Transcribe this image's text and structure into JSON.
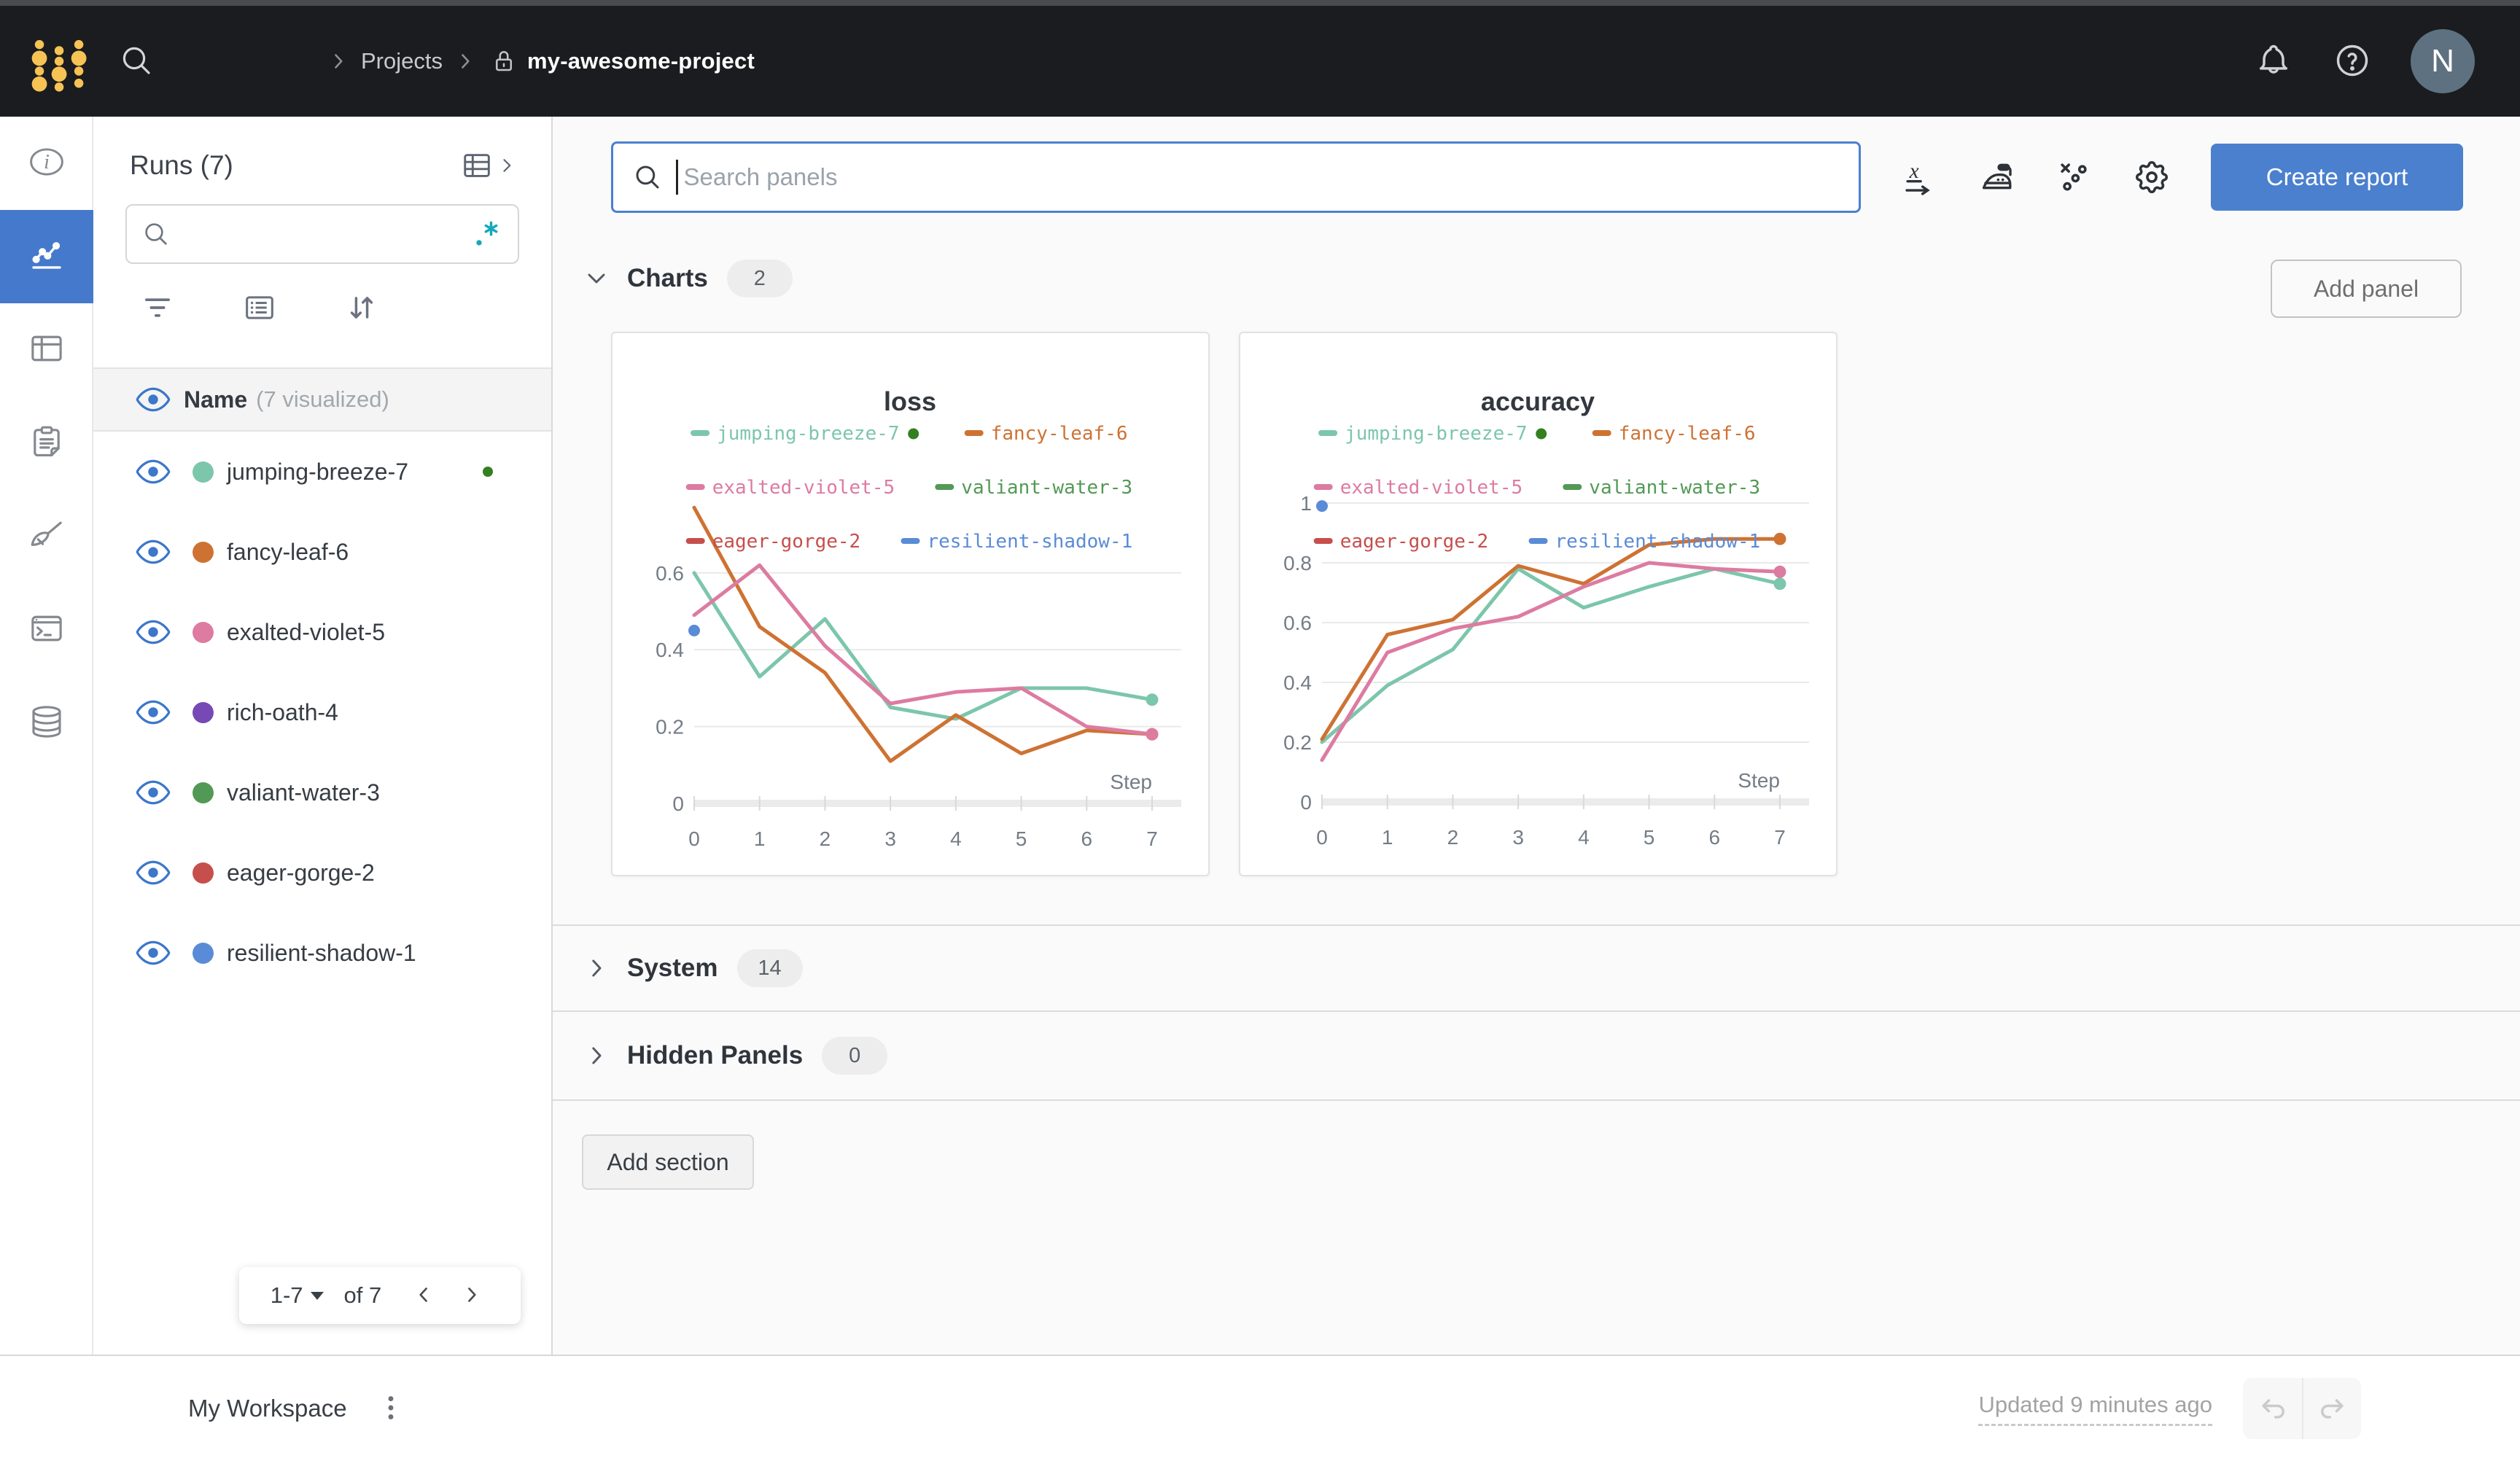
{
  "colors": {
    "accent_blue": "#4b80cf",
    "navbar_bg": "#1a1c1f",
    "logo_yellow": "#f6c354",
    "running_green": "#338021"
  },
  "navbar": {
    "breadcrumb": {
      "projects": "Projects",
      "project": "my-awesome-project"
    },
    "avatar_initial": "N",
    "icons": [
      "search-icon",
      "bell-icon",
      "help-icon"
    ]
  },
  "rail": {
    "items": [
      "info-icon",
      "workspace-chart-icon",
      "runs-table-icon",
      "reports-icon",
      "sweeps-icon",
      "logs-terminal-icon",
      "artifacts-database-icon"
    ],
    "active_index": 1
  },
  "sidebar": {
    "title": "Runs (7)",
    "search_placeholder": "",
    "regex_icon": ".*",
    "header_name": "Name",
    "header_visualized": "(7 visualized)",
    "runs": [
      {
        "name": "jumping-breeze-7",
        "color": "#7cc6ab",
        "running": true
      },
      {
        "name": "fancy-leaf-6",
        "color": "#ce7233",
        "running": false
      },
      {
        "name": "exalted-violet-5",
        "color": "#dd7ba1",
        "running": false
      },
      {
        "name": "rich-oath-4",
        "color": "#7749b5",
        "running": false
      },
      {
        "name": "valiant-water-3",
        "color": "#529955",
        "running": false
      },
      {
        "name": "eager-gorge-2",
        "color": "#c64f4c",
        "running": false
      },
      {
        "name": "resilient-shadow-1",
        "color": "#5a8bd6",
        "running": false
      }
    ],
    "pagination": {
      "range": "1-7",
      "of_label": "of 7"
    }
  },
  "toolbar": {
    "search_placeholder": "Search panels",
    "create_report": "Create report",
    "icons": [
      "x-axis-icon",
      "smoothing-iron-icon",
      "outliers-icon",
      "settings-gear-icon"
    ]
  },
  "sections": {
    "charts": {
      "label": "Charts",
      "count": "2"
    },
    "system": {
      "label": "System",
      "count": "14"
    },
    "hidden": {
      "label": "Hidden Panels",
      "count": "0"
    },
    "add_panel": "Add panel",
    "add_section": "Add section"
  },
  "footer": {
    "workspace": "My Workspace",
    "updated": "Updated 9 minutes ago"
  },
  "chart_data": [
    {
      "type": "line",
      "title": "loss",
      "xlabel": "Step",
      "x": [
        0,
        1,
        2,
        3,
        4,
        5,
        6,
        7
      ],
      "ylim": [
        0,
        0.78
      ],
      "yticks": [
        0,
        0.2,
        0.4,
        0.6
      ],
      "grid": true,
      "legend_position": "top",
      "legend_order": [
        [
          "jumping-breeze-7",
          "fancy-leaf-6"
        ],
        [
          "exalted-violet-5",
          "valiant-water-3"
        ],
        [
          "eager-gorge-2",
          "resilient-shadow-1"
        ]
      ],
      "series": [
        {
          "name": "jumping-breeze-7",
          "color": "#7cc6ab",
          "running": true,
          "values": [
            0.6,
            0.33,
            0.48,
            0.25,
            0.22,
            0.3,
            0.3,
            0.27
          ]
        },
        {
          "name": "fancy-leaf-6",
          "color": "#ce7233",
          "values": [
            0.77,
            0.46,
            0.34,
            0.11,
            0.23,
            0.13,
            0.19,
            0.18
          ]
        },
        {
          "name": "exalted-violet-5",
          "color": "#dd7ba1",
          "values": [
            0.49,
            0.62,
            0.41,
            0.26,
            0.29,
            0.3,
            0.2,
            0.18
          ]
        }
      ],
      "single_points": [
        {
          "name": "resilient-shadow-1",
          "color": "#5a8bd6",
          "x": 0,
          "y": 0.45
        }
      ],
      "legend_only": [
        {
          "name": "valiant-water-3",
          "color": "#529955"
        },
        {
          "name": "eager-gorge-2",
          "color": "#c64f4c"
        },
        {
          "name": "resilient-shadow-1",
          "color": "#5a8bd6"
        }
      ]
    },
    {
      "type": "line",
      "title": "accuracy",
      "xlabel": "Step",
      "x": [
        0,
        1,
        2,
        3,
        4,
        5,
        6,
        7
      ],
      "ylim": [
        0,
        1.0
      ],
      "yticks": [
        0,
        0.2,
        0.4,
        0.6,
        0.8,
        1
      ],
      "grid": true,
      "legend_position": "top",
      "legend_order": [
        [
          "jumping-breeze-7",
          "fancy-leaf-6"
        ],
        [
          "exalted-violet-5",
          "valiant-water-3"
        ],
        [
          "eager-gorge-2",
          "resilient-shadow-1"
        ]
      ],
      "series": [
        {
          "name": "jumping-breeze-7",
          "color": "#7cc6ab",
          "running": true,
          "values": [
            0.2,
            0.39,
            0.51,
            0.78,
            0.65,
            0.72,
            0.78,
            0.73
          ]
        },
        {
          "name": "fancy-leaf-6",
          "color": "#ce7233",
          "values": [
            0.21,
            0.56,
            0.61,
            0.79,
            0.73,
            0.86,
            0.88,
            0.88
          ]
        },
        {
          "name": "exalted-violet-5",
          "color": "#dd7ba1",
          "values": [
            0.14,
            0.5,
            0.58,
            0.62,
            0.72,
            0.8,
            0.78,
            0.77
          ]
        }
      ],
      "single_points": [
        {
          "name": "resilient-shadow-1",
          "color": "#5a8bd6",
          "x": 0,
          "y": 0.99
        }
      ],
      "legend_only": [
        {
          "name": "valiant-water-3",
          "color": "#529955"
        },
        {
          "name": "eager-gorge-2",
          "color": "#c64f4c"
        },
        {
          "name": "resilient-shadow-1",
          "color": "#5a8bd6"
        }
      ]
    }
  ]
}
